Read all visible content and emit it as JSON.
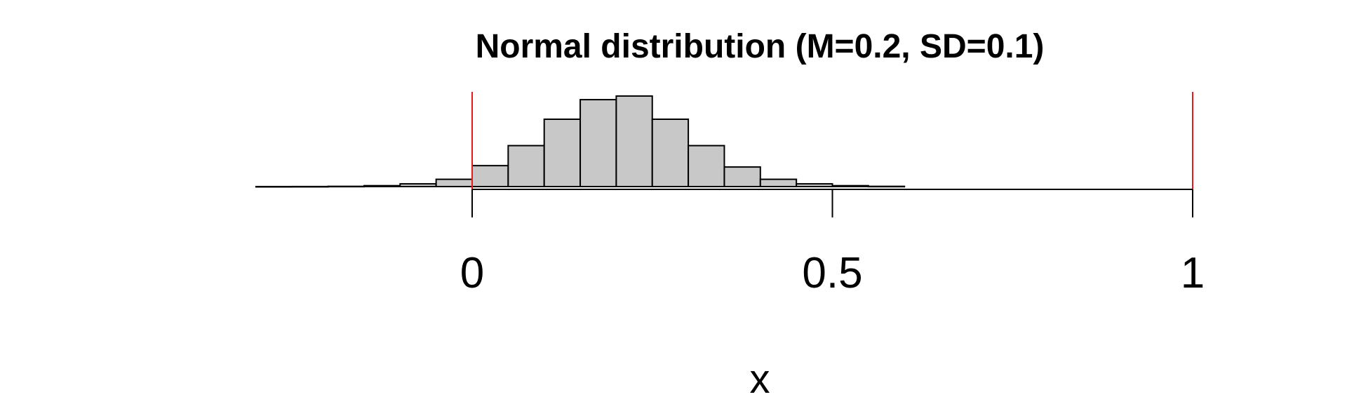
{
  "chart_data": {
    "type": "bar",
    "title": "Normal distribution (M=0.2, SD=0.1)",
    "xlabel": "x",
    "ylabel": "",
    "xlim": [
      -0.3,
      1
    ],
    "bin_width": 0.05,
    "bin_starts": [
      -0.3,
      -0.25,
      -0.2,
      -0.15,
      -0.1,
      -0.05,
      0.0,
      0.05,
      0.1,
      0.15,
      0.2,
      0.25,
      0.3,
      0.35,
      0.4,
      0.45,
      0.5,
      0.55
    ],
    "values": [
      0.0002,
      0.001,
      0.005,
      0.02,
      0.06,
      0.16,
      0.46,
      0.9,
      1.48,
      1.91,
      1.99,
      1.48,
      0.9,
      0.43,
      0.16,
      0.06,
      0.02,
      0.005
    ],
    "ylim": [
      0,
      2.05
    ],
    "x_ticks": [
      {
        "value": 0,
        "label": "0"
      },
      {
        "value": 0.5,
        "label": "0.5"
      },
      {
        "value": 1,
        "label": "1"
      }
    ],
    "reference_lines": [
      0,
      1
    ],
    "colors": {
      "bar_fill": "#c8c8c8",
      "bar_stroke": "#000000",
      "reference_line": "#e41a1c"
    },
    "grid": false,
    "legend": "none"
  }
}
